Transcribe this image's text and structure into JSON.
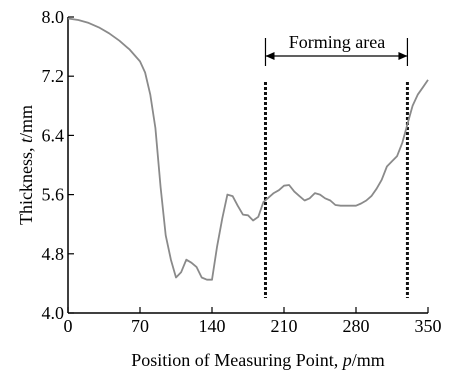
{
  "chart_data": {
    "type": "line",
    "xlabel": "Position of Measuring Point, p/mm",
    "xlabel_parts": [
      "Position of Measuring Point, ",
      "p",
      "/mm"
    ],
    "ylabel": "Thickness, t/mm",
    "ylabel_parts": [
      "Thickness, ",
      "t",
      "/mm"
    ],
    "xlim": [
      0,
      350
    ],
    "ylim": [
      4.0,
      8.0
    ],
    "x_ticks": [
      "0",
      "70",
      "140",
      "210",
      "280",
      "350"
    ],
    "y_ticks": [
      "4.0",
      "4.8",
      "5.6",
      "6.4",
      "7.2",
      "8.0"
    ],
    "grid": false,
    "series": [
      {
        "x": [
          0,
          10,
          20,
          30,
          40,
          50,
          60,
          70,
          75,
          80,
          85,
          90,
          95,
          100,
          105,
          110,
          115,
          120,
          125,
          130,
          135,
          140,
          145,
          150,
          155,
          160,
          165,
          170,
          175,
          180,
          185,
          190,
          195,
          200,
          205,
          210,
          215,
          220,
          225,
          230,
          235,
          240,
          245,
          250,
          255,
          260,
          265,
          270,
          275,
          280,
          285,
          290,
          295,
          300,
          305,
          310,
          315,
          320,
          325,
          330,
          335,
          340,
          345,
          350
        ],
        "y": [
          7.98,
          7.96,
          7.92,
          7.86,
          7.78,
          7.68,
          7.56,
          7.4,
          7.25,
          6.95,
          6.5,
          5.7,
          5.05,
          4.72,
          4.48,
          4.55,
          4.72,
          4.68,
          4.62,
          4.48,
          4.45,
          4.45,
          4.9,
          5.28,
          5.6,
          5.58,
          5.45,
          5.33,
          5.32,
          5.25,
          5.3,
          5.5,
          5.56,
          5.62,
          5.66,
          5.72,
          5.73,
          5.64,
          5.58,
          5.52,
          5.55,
          5.62,
          5.6,
          5.55,
          5.52,
          5.46,
          5.45,
          5.45,
          5.45,
          5.45,
          5.48,
          5.52,
          5.58,
          5.68,
          5.8,
          5.98,
          6.05,
          6.12,
          6.3,
          6.55,
          6.8,
          6.95,
          7.05,
          7.15
        ]
      }
    ],
    "annotations": {
      "forming_area": {
        "label": "Forming area",
        "x_start": 192,
        "x_end": 330
      }
    }
  }
}
